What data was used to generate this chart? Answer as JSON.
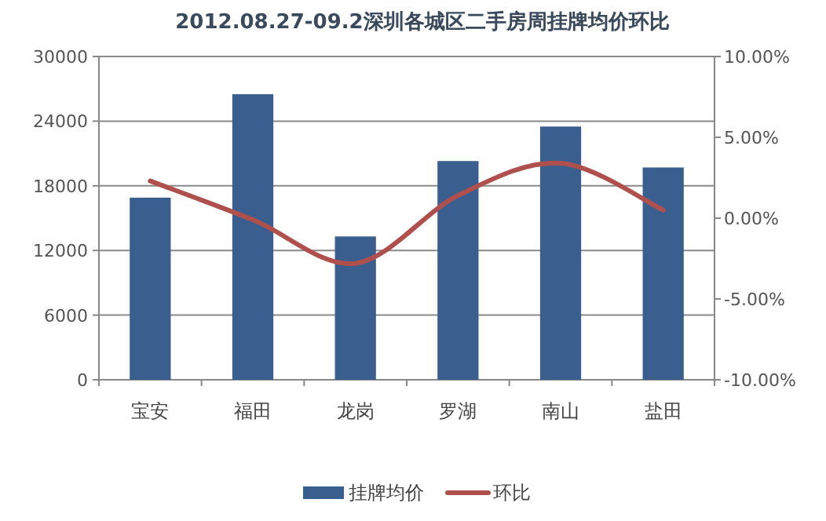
{
  "chart_data": {
    "type": "bar",
    "title": "2012.08.27-09.2深圳各城区二手房周挂牌均价环比",
    "categories": [
      "宝安",
      "福田",
      "龙岗",
      "罗湖",
      "南山",
      "盐田"
    ],
    "series": [
      {
        "name": "挂牌均价",
        "color": "#3a5f8f",
        "values": [
          16900,
          26500,
          13300,
          20300,
          23500,
          19700
        ]
      },
      {
        "name": "环比",
        "type": "line",
        "axis": "y2",
        "color": "#b0504d",
        "values": [
          2.3,
          -0.1,
          -2.8,
          1.4,
          3.4,
          0.5
        ]
      }
    ],
    "ylim": [
      0,
      30000
    ],
    "yticks": [
      0,
      6000,
      12000,
      18000,
      24000,
      30000
    ],
    "y2lim": [
      -10,
      10
    ],
    "y2ticks": [
      {
        "value": -10,
        "label": "-10.00%"
      },
      {
        "value": -5,
        "label": "-5.00%"
      },
      {
        "value": 0,
        "label": "0.00%"
      },
      {
        "value": 5,
        "label": "5.00%"
      },
      {
        "value": 10,
        "label": "10.00%"
      }
    ],
    "grid": "y",
    "legend": "bottom",
    "marker": "none",
    "line_style": "solid"
  }
}
